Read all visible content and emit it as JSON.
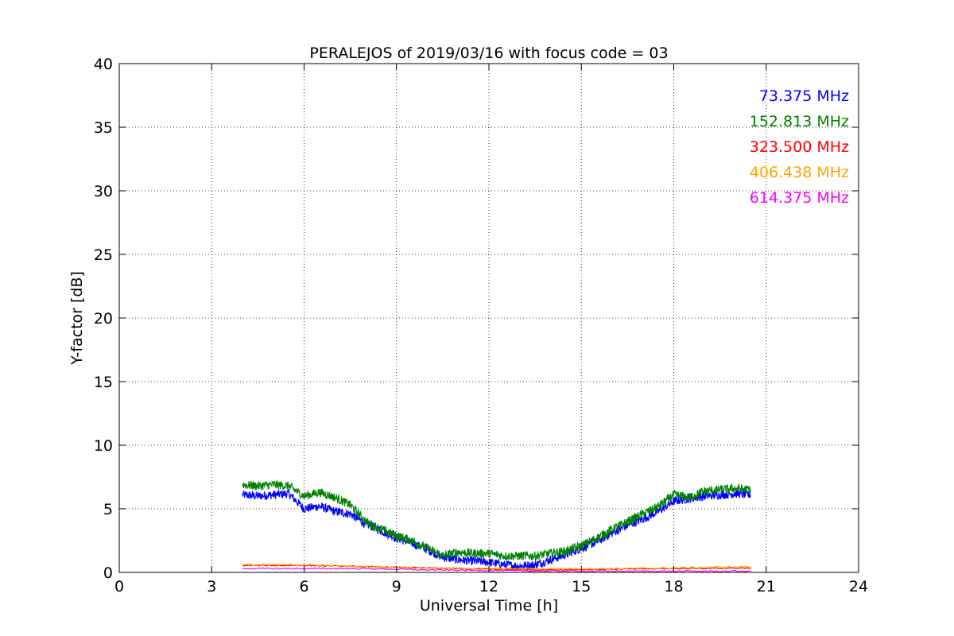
{
  "chart_data": {
    "type": "line",
    "title": "PERALEJOS of 2019/03/16 with focus code = 03",
    "xlabel": "Universal Time [h]",
    "ylabel": "Y-factor [dB]",
    "xlim": [
      0,
      24
    ],
    "ylim": [
      0,
      40
    ],
    "xticks": [
      "0",
      "3",
      "6",
      "9",
      "12",
      "15",
      "18",
      "21",
      "24"
    ],
    "yticks": [
      "0",
      "5",
      "10",
      "15",
      "20",
      "25",
      "30",
      "35",
      "40"
    ],
    "grid": true,
    "legend_position": "top-right",
    "series": [
      {
        "name": "73.375 MHz",
        "color": "#0000ff",
        "x": [
          4.0,
          4.5,
          5.0,
          5.5,
          6.0,
          6.5,
          7.0,
          7.5,
          8.0,
          8.5,
          9.0,
          9.5,
          10.0,
          10.5,
          11.0,
          11.5,
          12.0,
          12.5,
          13.0,
          13.5,
          14.0,
          14.5,
          15.0,
          15.5,
          16.0,
          16.5,
          17.0,
          17.5,
          18.0,
          18.5,
          19.0,
          19.5,
          20.0,
          20.5
        ],
        "y": [
          6.1,
          6.0,
          6.1,
          6.2,
          5.0,
          5.2,
          4.8,
          4.6,
          3.8,
          3.3,
          2.7,
          2.3,
          1.8,
          1.2,
          1.0,
          0.9,
          0.8,
          0.6,
          0.5,
          0.6,
          1.0,
          1.4,
          1.9,
          2.4,
          3.1,
          3.7,
          4.2,
          4.8,
          5.6,
          5.8,
          6.0,
          6.1,
          6.2,
          6.1
        ]
      },
      {
        "name": "152.813 MHz",
        "color": "#008000",
        "x": [
          4.0,
          4.5,
          5.0,
          5.5,
          6.0,
          6.5,
          7.0,
          7.5,
          8.0,
          8.5,
          9.0,
          9.5,
          10.0,
          10.5,
          11.0,
          11.5,
          12.0,
          12.5,
          13.0,
          13.5,
          14.0,
          14.5,
          15.0,
          15.5,
          16.0,
          16.5,
          17.0,
          17.5,
          18.0,
          18.5,
          19.0,
          19.5,
          20.0,
          20.5
        ],
        "y": [
          6.9,
          6.8,
          6.9,
          6.8,
          6.0,
          6.3,
          5.9,
          5.3,
          4.0,
          3.4,
          2.9,
          2.5,
          1.9,
          1.3,
          1.6,
          1.5,
          1.5,
          1.3,
          1.3,
          1.3,
          1.5,
          1.7,
          2.1,
          2.7,
          3.4,
          4.0,
          4.6,
          5.2,
          6.1,
          5.9,
          6.4,
          6.5,
          6.6,
          6.5
        ]
      },
      {
        "name": "323.500 MHz",
        "color": "#ff0000",
        "x": [
          4.0,
          6.0,
          8.0,
          10.0,
          12.0,
          14.0,
          16.0,
          18.0,
          20.5
        ],
        "y": [
          0.55,
          0.55,
          0.45,
          0.35,
          0.25,
          0.2,
          0.25,
          0.3,
          0.35
        ]
      },
      {
        "name": "406.438 MHz",
        "color": "#ffa500",
        "x": [
          4.0,
          6.0,
          8.0,
          10.0,
          12.0,
          14.0,
          16.0,
          18.0,
          20.5
        ],
        "y": [
          0.6,
          0.6,
          0.45,
          0.35,
          0.3,
          0.3,
          0.3,
          0.35,
          0.45
        ]
      },
      {
        "name": "614.375 MHz",
        "color": "#ff00ff",
        "x": [
          4.0,
          6.0,
          8.0,
          10.0,
          12.0,
          14.0,
          16.0,
          18.0,
          20.5
        ],
        "y": [
          0.3,
          0.3,
          0.3,
          0.2,
          0.15,
          0.1,
          0.1,
          0.1,
          0.1
        ]
      }
    ]
  }
}
